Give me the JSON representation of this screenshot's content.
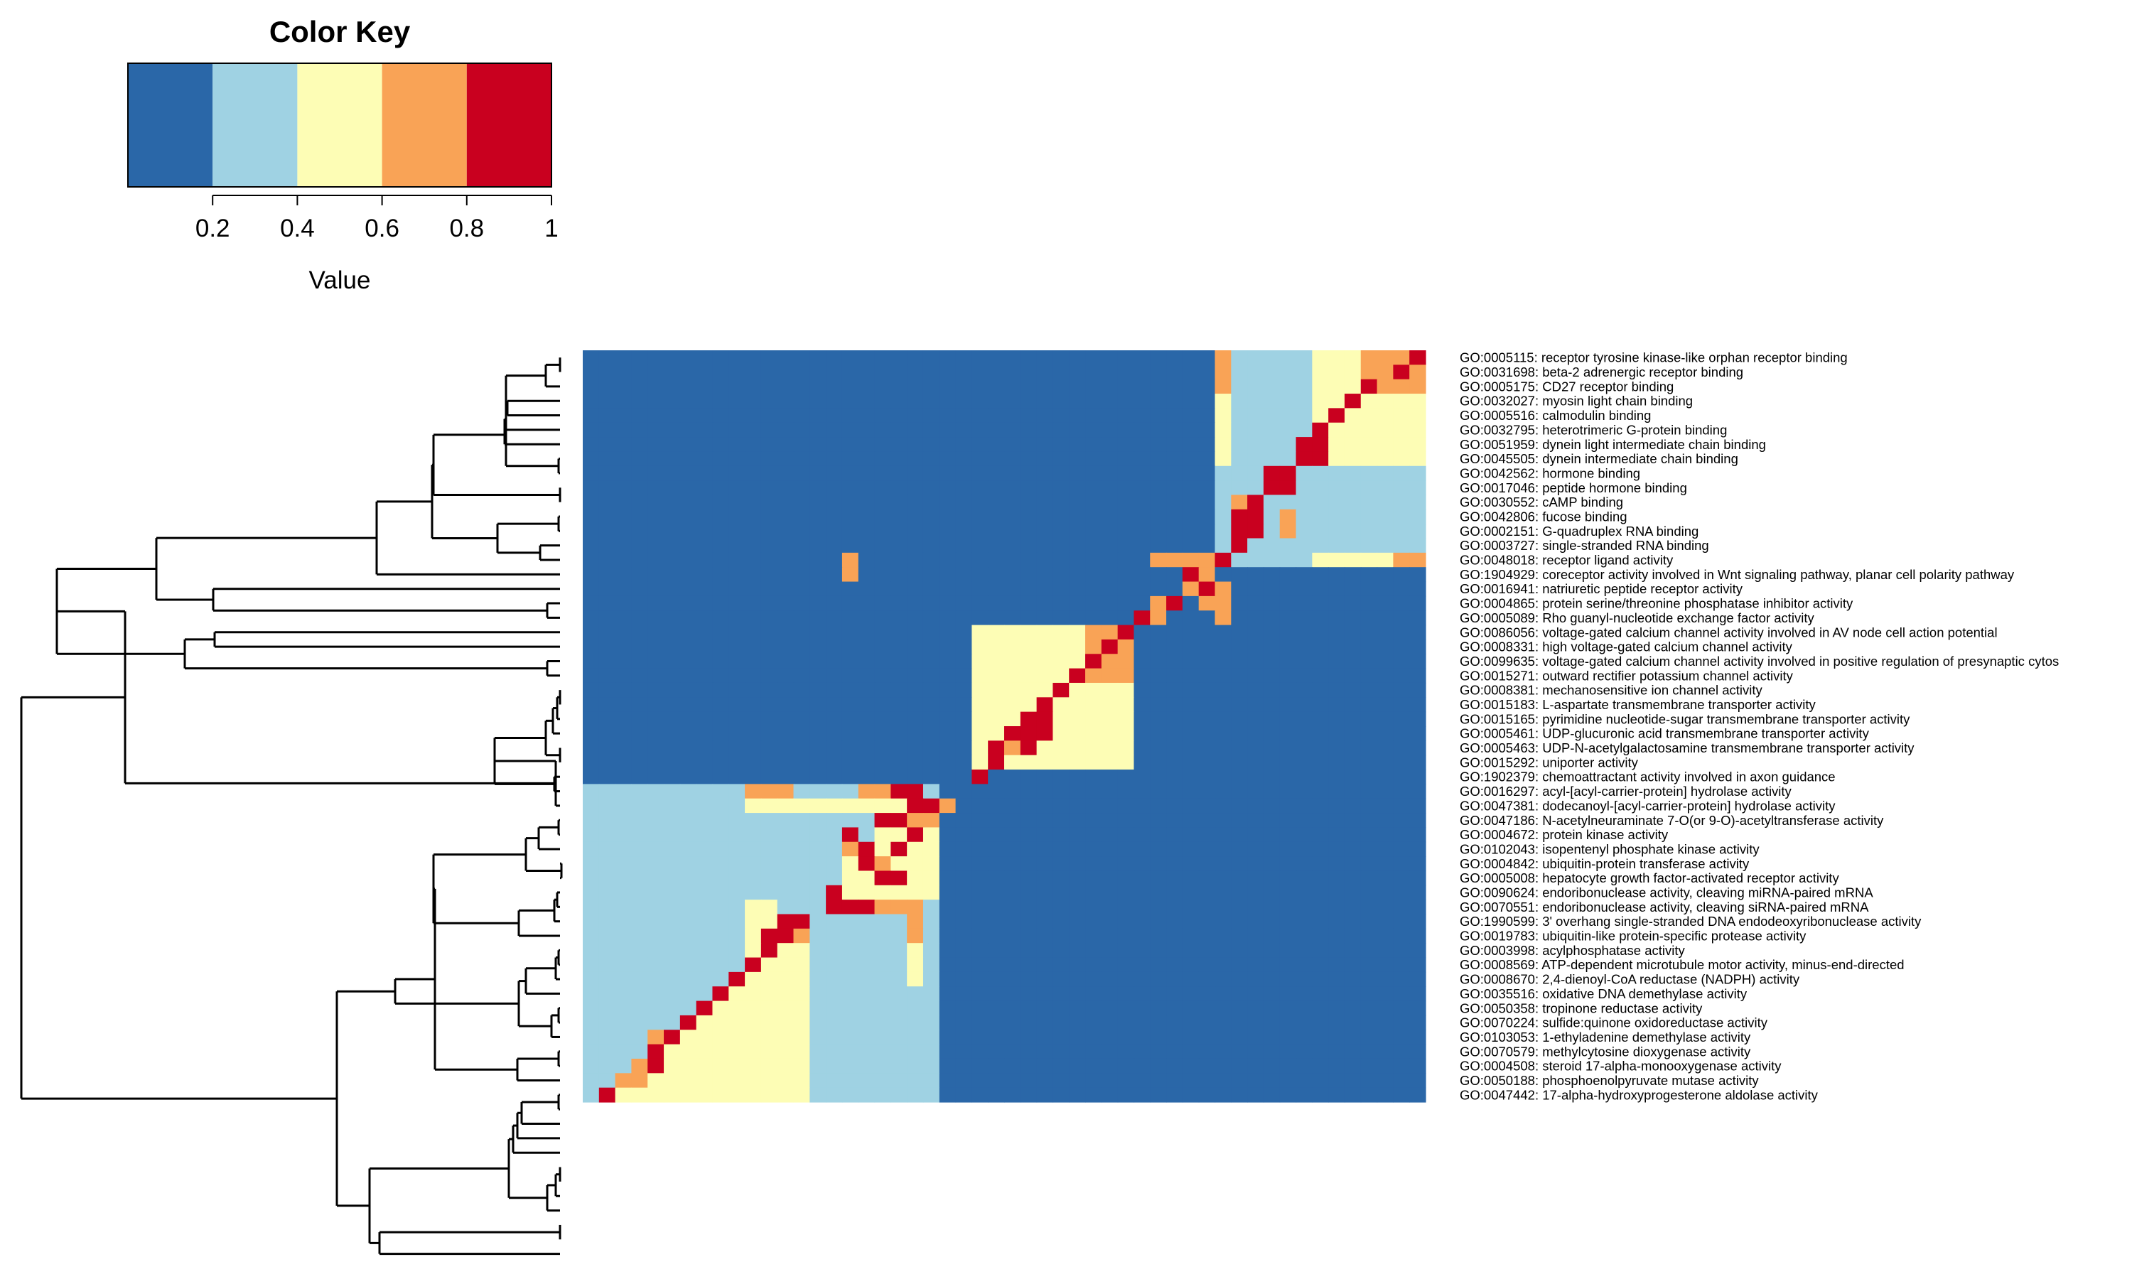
{
  "chart_data": {
    "type": "heatmap",
    "color_key": {
      "title": "Color Key",
      "xlabel": "Value",
      "breaks": [
        0,
        0.2,
        0.4,
        0.6,
        0.8,
        1
      ],
      "ticks": [
        "0.2",
        "0.4",
        "0.6",
        "0.8",
        "1"
      ],
      "colors": [
        "#2a67a8",
        "#9fd2e3",
        "#fdfdb5",
        "#f9a356",
        "#c9001f"
      ]
    },
    "dendrogram": "rows, hierarchical clustering, left side",
    "rows": [
      "GO:0005115: receptor tyrosine kinase-like orphan receptor binding",
      "GO:0031698: beta-2 adrenergic receptor binding",
      "GO:0005175: CD27 receptor binding",
      "GO:0032027: myosin light chain binding",
      "GO:0005516: calmodulin binding",
      "GO:0032795: heterotrimeric G-protein binding",
      "GO:0051959: dynein light intermediate chain binding",
      "GO:0045505: dynein intermediate chain binding",
      "GO:0042562: hormone binding",
      "GO:0017046: peptide hormone binding",
      "GO:0030552: cAMP binding",
      "GO:0042806: fucose binding",
      "GO:0002151: G-quadruplex RNA binding",
      "GO:0003727: single-stranded RNA binding",
      "GO:0048018: receptor ligand activity",
      "GO:1904929: coreceptor activity involved in Wnt signaling pathway, planar cell polarity pathway",
      "GO:0016941: natriuretic peptide receptor activity",
      "GO:0004865: protein serine/threonine phosphatase inhibitor activity",
      "GO:0005089: Rho guanyl-nucleotide exchange factor activity",
      "GO:0086056: voltage-gated calcium channel activity involved in AV node cell action potential",
      "GO:0008331: high voltage-gated calcium channel activity",
      "GO:0099635: voltage-gated calcium channel activity involved in positive regulation of presynaptic cytos",
      "GO:0015271: outward rectifier potassium channel activity",
      "GO:0008381: mechanosensitive ion channel activity",
      "GO:0015183: L-aspartate transmembrane transporter activity",
      "GO:0015165: pyrimidine nucleotide-sugar transmembrane transporter activity",
      "GO:0005461: UDP-glucuronic acid transmembrane transporter activity",
      "GO:0005463: UDP-N-acetylgalactosamine transmembrane transporter activity",
      "GO:0015292: uniporter activity",
      "GO:1902379: chemoattractant activity involved in axon guidance",
      "GO:0016297: acyl-[acyl-carrier-protein] hydrolase activity",
      "GO:0047381: dodecanoyl-[acyl-carrier-protein] hydrolase activity",
      "GO:0047186: N-acetylneuraminate 7-O(or 9-O)-acetyltransferase activity",
      "GO:0004672: protein kinase activity",
      "GO:0102043: isopentenyl phosphate kinase activity",
      "GO:0004842: ubiquitin-protein transferase activity",
      "GO:0005008: hepatocyte growth factor-activated receptor activity",
      "GO:0090624: endoribonuclease activity, cleaving miRNA-paired mRNA",
      "GO:0070551: endoribonuclease activity, cleaving siRNA-paired mRNA",
      "GO:1990599: 3' overhang single-stranded DNA endodeoxyribonuclease activity",
      "GO:0019783: ubiquitin-like protein-specific protease activity",
      "GO:0003998: acylphosphatase activity",
      "GO:0008569: ATP-dependent microtubule motor activity, minus-end-directed",
      "GO:0008670: 2,4-dienoyl-CoA reductase (NADPH) activity",
      "GO:0035516: oxidative DNA demethylase activity",
      "GO:0050358: tropinone reductase activity",
      "GO:0070224: sulfide:quinone oxidoreductase activity",
      "GO:0103053: 1-ethyladenine demethylase activity",
      "GO:0070579: methylcytosine dioxygenase activity",
      "GO:0004508: steroid 17-alpha-monooxygenase activity",
      "GO:0050188: phosphoenolpyruvate mutase activity",
      "GO:0047442: 17-alpha-hydroxyprogesterone aldolase activity"
    ],
    "cell_value_classes": [
      0.1,
      0.3,
      0.5,
      0.7,
      0.9
    ],
    "matrix_rows": [
      "0000000000000000000000000000000000000003111112223334",
      "0000000000000000000000000000000000000003111112223343",
      "0000000000000000000000000000000000000003111112224333",
      "0000000000000000000000000000000000000002111112242222",
      "0000000000000000000000000000000000000002111112422222",
      "0000000000000000000000000000000000000002111114222222",
      "0000000000000000000000000000000000000002111144222222",
      "0000000000000000000000000000000000000002111144222222",
      "0000000000000000000000000000000000000001114411111111",
      "0000000000000000000000000000000000000001114411111111",
      "0000000000000000000000000000000000000001341111111111",
      "0000000000000000000000000000000000000001441311111111",
      "0000000000000000000000000000000000000001441311111111",
      "0000000000000000000000000000000000000001411111111111",
      "0000000000000000300000000000000000033334111112222233",
      "0000000000000000300000000000000000000430000000000000",
      "0000000000000000000000000000000000000343000000000000",
      "0000000000000000000000000000000000034033000000000000",
      "0000000000000000000000000000000000430003000000000000",
      "0000000000000000000000002222222334000000000000000000",
      "0000000000000000000000002222222343000000000000000000",
      "0000000000000000000000002222222433000000000000000000",
      "0000000000000000000000002222224333000000000000000000",
      "0000000000000000000000002222242222000000000000000000",
      "0000000000000000000000002222422222000000000000000000",
      "0000000000000000000000002224422222000000000000000000",
      "0000000000000000000000002244422222000000000000000000",
      "0000000000000000000000002434222222000000000000000000",
      "0000000000000000000000002422222222000000000000000000",
      "0000000000000000000000004000000000000000000000000000",
      "1111111111333111133441000000000000000000000000000000",
      "1111111111222222222244300000000000000000000000000000",
      "1111111111111111114433000000000000000000000000000000",
      "1111111111111111412242000000000000000000000000000000",
      "1111111111111111342422000000000000000000000000000000",
      "1111111111111111243222000000000000000000000000000000",
      "1111111111111111224422000000000000000000000000000000",
      "1111111111111114222222000000000000000000000000000000",
      "1111111111221114443331000000000000000000000000000000",
      "1111111111224411111131000000000000000000000000000000",
      "1111111111244311111131000000000000000000000000000000",
      "1111111111242211111121000000000000000000000000000000",
      "1111111111422211111121000000000000000000000000000000",
      "1111111114222211111121000000000000000000000000000000",
      "1111111142222211111111000000000000000000000000000000",
      "1111111422222211111111000000000000000000000000000000",
      "1111114222222211111111000000000000000000000000000000",
      "1111342222222211111111000000000000000000000000000000",
      "1111422222222211111111000000000000000000000000000000",
      "1113422222222211111111000000000000000000000000000000",
      "1133222222222211111111000000000000000000000000000000",
      "1422222222222211111111000000000000000000000000000000"
    ]
  }
}
